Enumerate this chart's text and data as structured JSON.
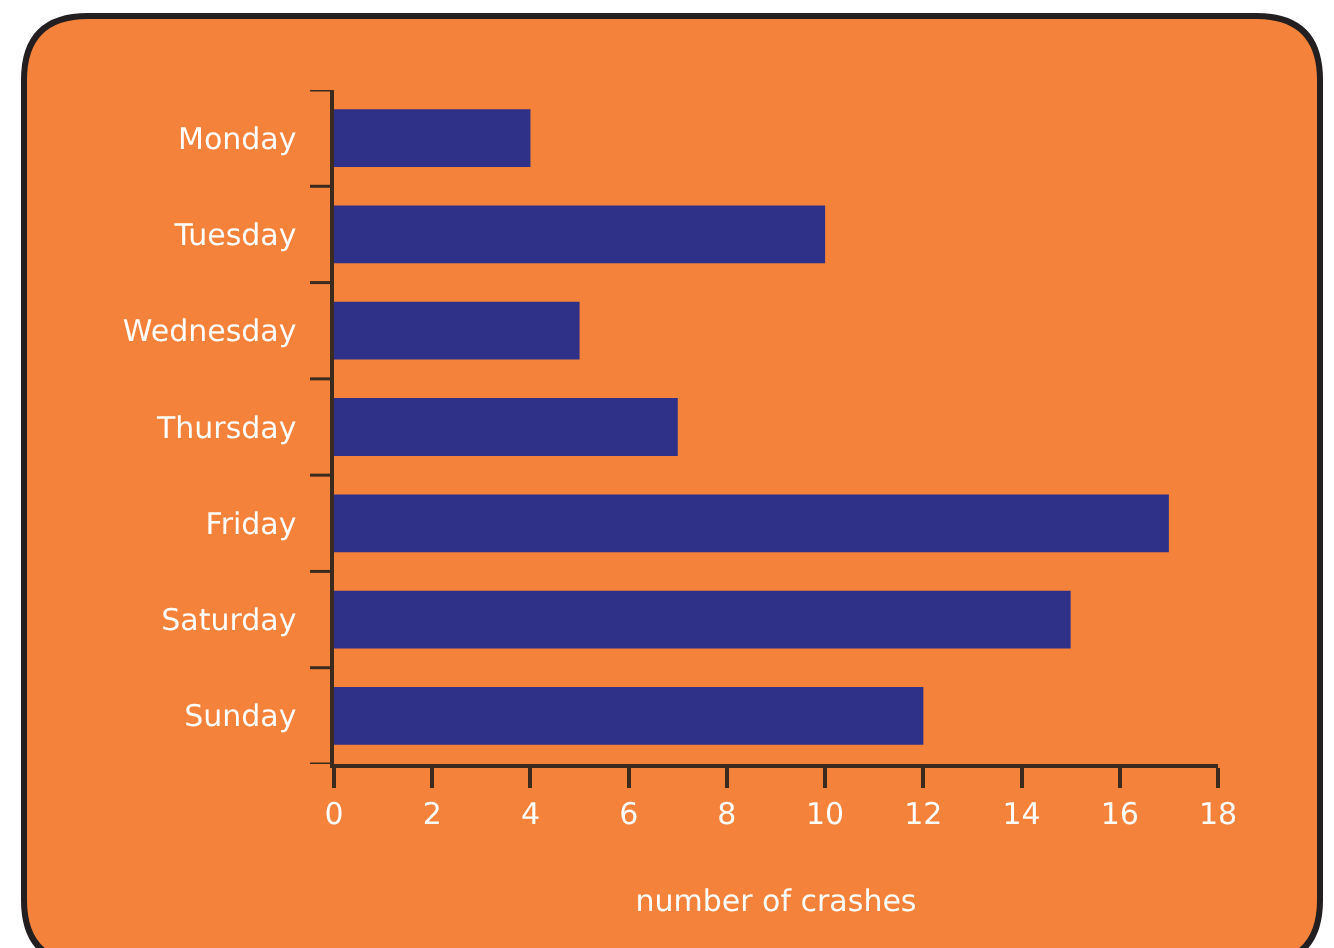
{
  "chart_data": {
    "type": "bar",
    "orientation": "horizontal",
    "categories": [
      "Monday",
      "Tuesday",
      "Wednesday",
      "Thursday",
      "Friday",
      "Saturday",
      "Sunday"
    ],
    "values": [
      4,
      10,
      5,
      7,
      17,
      15,
      12
    ],
    "color": "#2e3187",
    "xlabel": "number of crashes",
    "xlim": [
      0,
      18
    ],
    "xticks": [
      0,
      2,
      4,
      6,
      8,
      10,
      12,
      14,
      16,
      18
    ]
  }
}
